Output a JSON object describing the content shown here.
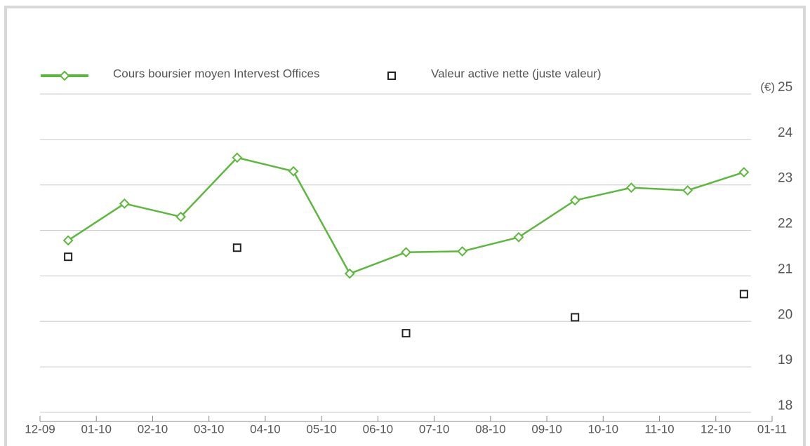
{
  "chart_data": {
    "type": "line",
    "y_unit": "(€)",
    "xlim": [
      0,
      13
    ],
    "xticks": [
      {
        "value": 0,
        "label": "12-09"
      },
      {
        "value": 1,
        "label": "01-10"
      },
      {
        "value": 2,
        "label": "02-10"
      },
      {
        "value": 3,
        "label": "03-10"
      },
      {
        "value": 4,
        "label": "04-10"
      },
      {
        "value": 5,
        "label": "05-10"
      },
      {
        "value": 6,
        "label": "06-10"
      },
      {
        "value": 7,
        "label": "07-10"
      },
      {
        "value": 8,
        "label": "08-10"
      },
      {
        "value": 9,
        "label": "09-10"
      },
      {
        "value": 10,
        "label": "10-10"
      },
      {
        "value": 11,
        "label": "11-10"
      },
      {
        "value": 12,
        "label": "12-10"
      },
      {
        "value": 13,
        "label": "01-11"
      }
    ],
    "ylim": [
      18,
      25
    ],
    "yticks": [
      18,
      19,
      20,
      21,
      22,
      23,
      24,
      25
    ],
    "grid": true,
    "series": [
      {
        "name": "Cours boursier moyen Intervest Offices",
        "color": "#5cb83c",
        "marker": "diamond",
        "line": true,
        "x": [
          0.5,
          1.5,
          2.5,
          3.5,
          4.5,
          5.5,
          6.5,
          7.5,
          8.5,
          9.5,
          10.5,
          11.5,
          12.5
        ],
        "values": [
          21.78,
          22.59,
          22.3,
          23.6,
          23.3,
          21.05,
          21.52,
          21.54,
          21.85,
          22.66,
          22.94,
          22.88,
          23.28
        ]
      },
      {
        "name": "Valeur active nette (juste valeur)",
        "color": "#222222",
        "marker": "square",
        "line": false,
        "x": [
          0.5,
          3.5,
          6.5,
          9.5,
          12.5
        ],
        "values": [
          21.42,
          21.62,
          19.74,
          20.09,
          20.6
        ]
      }
    ]
  }
}
